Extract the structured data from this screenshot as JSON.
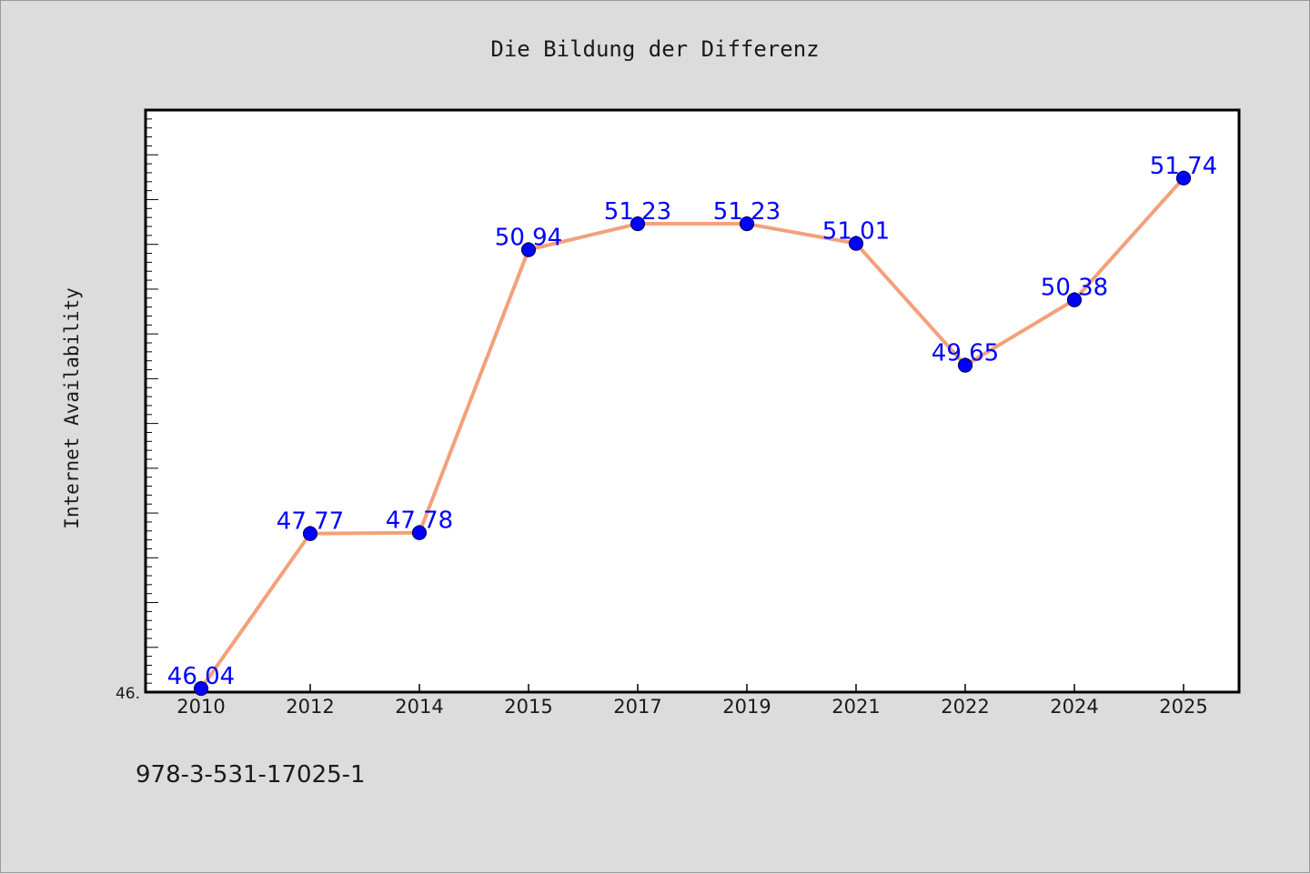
{
  "chart_data": {
    "type": "line",
    "title": "Die Bildung der Differenz",
    "xlabel": "",
    "ylabel": "Internet Availability",
    "categories": [
      "2010",
      "2012",
      "2014",
      "2015",
      "2017",
      "2019",
      "2021",
      "2022",
      "2024",
      "2025"
    ],
    "values": [
      46.04,
      47.77,
      47.78,
      50.94,
      51.23,
      51.23,
      51.01,
      49.65,
      50.38,
      51.74
    ],
    "data_labels": [
      "46.04",
      "47.77",
      "47.78",
      "50.94",
      "51.23",
      "51.23",
      "51.01",
      "49.65",
      "50.38",
      "51.74"
    ],
    "ytick_label": "46.",
    "ylim": [
      46.0,
      52.5
    ],
    "grid": false,
    "line_color": "#f4a07a",
    "marker_color": "#0000ff",
    "label_color": "#0000ff"
  },
  "footer": {
    "code": "978-3-531-17025-1"
  }
}
